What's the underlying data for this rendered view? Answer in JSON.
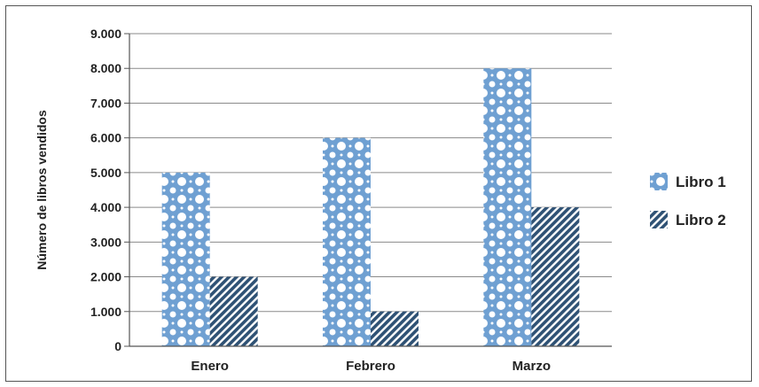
{
  "chart_data": {
    "type": "bar",
    "categories": [
      "Enero",
      "Febrero",
      "Marzo"
    ],
    "series": [
      {
        "name": "Libro 1",
        "values": [
          5000,
          6000,
          8000
        ],
        "color": "#6fa0d2",
        "pattern": "dots"
      },
      {
        "name": "Libro 2",
        "values": [
          2000,
          1000,
          4000
        ],
        "color": "#2f5275",
        "pattern": "diagonal-stripes"
      }
    ],
    "ylabel": "Número de libros vendidos",
    "xlabel": "",
    "ylim": [
      0,
      9000
    ],
    "yticks": [
      0,
      1000,
      2000,
      3000,
      4000,
      5000,
      6000,
      7000,
      8000,
      9000
    ],
    "ytick_labels": [
      "0",
      "1.000",
      "2.000",
      "3.000",
      "4.000",
      "5.000",
      "6.000",
      "7.000",
      "8.000",
      "9.000"
    ],
    "grid": true,
    "legend_position": "right"
  }
}
